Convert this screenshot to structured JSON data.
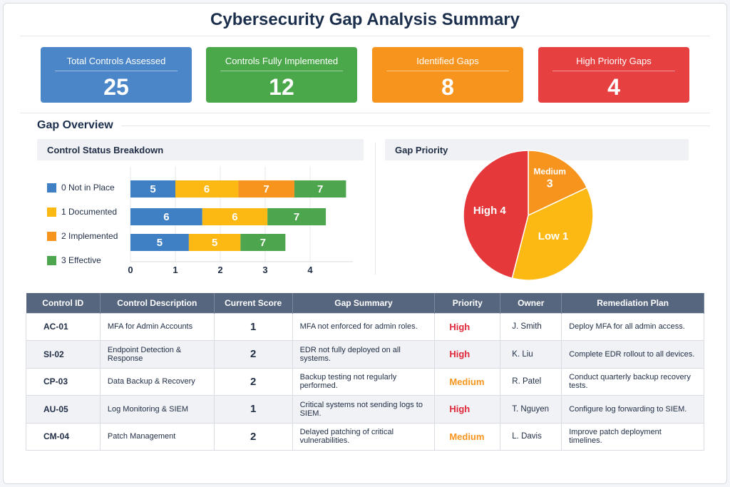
{
  "title": "Cybersecurity Gap Analysis Summary",
  "cards": [
    {
      "label": "Total Controls Assessed",
      "value": "25",
      "color": "#4a86c8"
    },
    {
      "label": "Controls Fully Implemented",
      "value": "12",
      "color": "#4aa84a"
    },
    {
      "label": "Identified Gaps",
      "value": "8",
      "color": "#f7941d"
    },
    {
      "label": "High Priority Gaps",
      "value": "4",
      "color": "#e64040"
    }
  ],
  "section_title": "Gap Overview",
  "bar_panel_title": "Control Status Breakdown",
  "pie_panel_title": "Gap Priority",
  "chart_data": [
    {
      "type": "bar",
      "orientation": "horizontal",
      "stacked": true,
      "legend": [
        {
          "label": "0 Not  in Place",
          "color": "#3f7fc4"
        },
        {
          "label": "1 Documented",
          "color": "#fdb913"
        },
        {
          "label": "2 Implemented",
          "color": "#f7941d"
        },
        {
          "label": "3 Effective",
          "color": "#4da64d"
        }
      ],
      "xticks": [
        "0",
        "1",
        "2",
        "3",
        "4"
      ],
      "xlim": [
        0,
        4.8
      ],
      "grid": true,
      "rows": [
        [
          {
            "label": "5",
            "value": 1.0,
            "color": "#3f7fc4"
          },
          {
            "label": "6",
            "value": 1.4,
            "color": "#fdb913"
          },
          {
            "label": "7",
            "value": 1.25,
            "color": "#f7941d"
          },
          {
            "label": "7",
            "value": 1.15,
            "color": "#4da64d"
          }
        ],
        [
          {
            "label": "6",
            "value": 1.6,
            "color": "#3f7fc4"
          },
          {
            "label": "6",
            "value": 1.45,
            "color": "#fdb913"
          },
          {
            "label": "7",
            "value": 1.3,
            "color": "#4da64d"
          }
        ],
        [
          {
            "label": "5",
            "value": 1.3,
            "color": "#3f7fc4"
          },
          {
            "label": "5",
            "value": 1.15,
            "color": "#fdb913"
          },
          {
            "label": "7",
            "value": 1.0,
            "color": "#4da64d"
          }
        ]
      ]
    },
    {
      "type": "pie",
      "slices": [
        {
          "name": "Medium",
          "label": "3",
          "share_pct": 18,
          "color": "#f7941d"
        },
        {
          "name": "Low",
          "label": "1",
          "share_pct": 36,
          "color": "#fdb913"
        },
        {
          "name": "High",
          "label": "4",
          "share_pct": 46,
          "color": "#e5383b"
        }
      ]
    }
  ],
  "table": {
    "headers": [
      "Control ID",
      "Control Description",
      "Current Score",
      "Gap Summary",
      "Priority",
      "Owner",
      "Remediation Plan"
    ],
    "rows": [
      [
        "AC-01",
        "MFA for Admin Accounts",
        "1",
        "MFA not enforced for admin roles.",
        "High",
        "J. Smith",
        "Deploy MFA for all admin access."
      ],
      [
        "SI-02",
        "Endpoint Detection & Response",
        "2",
        "EDR not fully deployed on all systems.",
        "High",
        "K. Liu",
        "Complete EDR rollout to all devices."
      ],
      [
        "CP-03",
        "Data Backup & Recovery",
        "2",
        "Backup testing not regularly performed.",
        "Medium",
        "R. Patel",
        "Conduct quarterly backup recovery tests."
      ],
      [
        "AU-05",
        "Log Monitoring & SIEM",
        "1",
        "Critical systems not sending logs to SIEM.",
        "High",
        "T. Nguyen",
        "Configure log forwarding to SIEM."
      ],
      [
        "CM-04",
        "Patch Management",
        "2",
        "Delayed patching of critical vulnerabilities.",
        "Medium",
        "L. Davis",
        "Improve patch deployment timelines."
      ]
    ]
  },
  "priority_colors": {
    "High": "#e0283a",
    "Medium": "#f7941d"
  }
}
